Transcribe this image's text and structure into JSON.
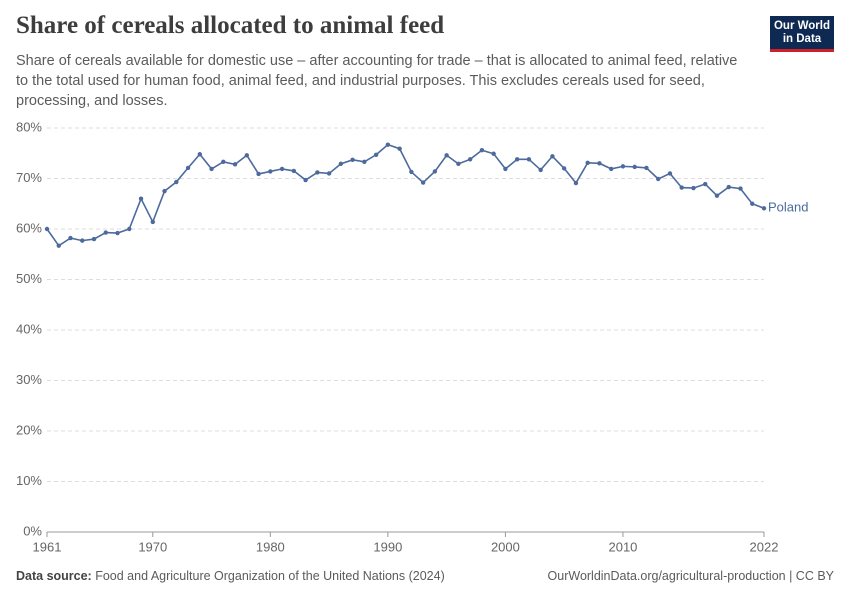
{
  "header": {
    "logo_line1": "Our World",
    "logo_line2": "in Data"
  },
  "chart_data": {
    "type": "line",
    "title": "Share of cereals allocated to animal feed",
    "subtitle": "Share of cereals available for domestic use – after accounting for trade – that is allocated to animal feed, relative to the total used for human food, animal feed, and industrial purposes. This excludes cereals used for seed, processing, and losses.",
    "x": [
      1961,
      1962,
      1963,
      1964,
      1965,
      1966,
      1967,
      1968,
      1969,
      1970,
      1971,
      1972,
      1973,
      1974,
      1975,
      1976,
      1977,
      1978,
      1979,
      1980,
      1981,
      1982,
      1983,
      1984,
      1985,
      1986,
      1987,
      1988,
      1989,
      1990,
      1991,
      1992,
      1993,
      1994,
      1995,
      1996,
      1997,
      1998,
      1999,
      2000,
      2001,
      2002,
      2003,
      2004,
      2005,
      2006,
      2007,
      2008,
      2009,
      2010,
      2011,
      2012,
      2013,
      2014,
      2015,
      2016,
      2017,
      2018,
      2019,
      2020,
      2021,
      2022
    ],
    "series": [
      {
        "name": "Poland",
        "color": "#4c6a9c",
        "values": [
          60.0,
          56.7,
          58.2,
          57.7,
          58.0,
          59.3,
          59.2,
          60.0,
          66.0,
          61.4,
          67.5,
          69.3,
          72.1,
          74.8,
          71.9,
          73.3,
          72.8,
          74.6,
          70.9,
          71.4,
          71.9,
          71.5,
          69.7,
          71.2,
          71.0,
          72.9,
          73.7,
          73.3,
          74.7,
          76.7,
          75.9,
          71.3,
          69.2,
          71.4,
          74.6,
          72.9,
          73.8,
          75.6,
          74.9,
          71.9,
          73.8,
          73.8,
          71.7,
          74.4,
          72.0,
          69.1,
          73.1,
          73.0,
          71.9,
          72.4,
          72.3,
          72.1,
          69.9,
          71.0,
          68.2,
          68.1,
          68.9,
          66.6,
          68.3,
          68.0,
          65.0,
          64.1
        ]
      }
    ],
    "xlim": [
      1961,
      2022
    ],
    "xticks": [
      1961,
      1970,
      1980,
      1990,
      2000,
      2010,
      2022
    ],
    "ylim": [
      0,
      80
    ],
    "yticks": [
      {
        "value": 0,
        "label": "0%"
      },
      {
        "value": 10,
        "label": "10%"
      },
      {
        "value": 20,
        "label": "20%"
      },
      {
        "value": 30,
        "label": "30%"
      },
      {
        "value": 40,
        "label": "40%"
      },
      {
        "value": 50,
        "label": "50%"
      },
      {
        "value": 60,
        "label": "60%"
      },
      {
        "value": 70,
        "label": "70%"
      },
      {
        "value": 80,
        "label": "80%"
      }
    ],
    "grid": true,
    "source_label": "Data source:",
    "source": "Food and Agriculture Organization of the United Nations (2024)",
    "url": "OurWorldinData.org/agricultural-production | CC BY"
  }
}
